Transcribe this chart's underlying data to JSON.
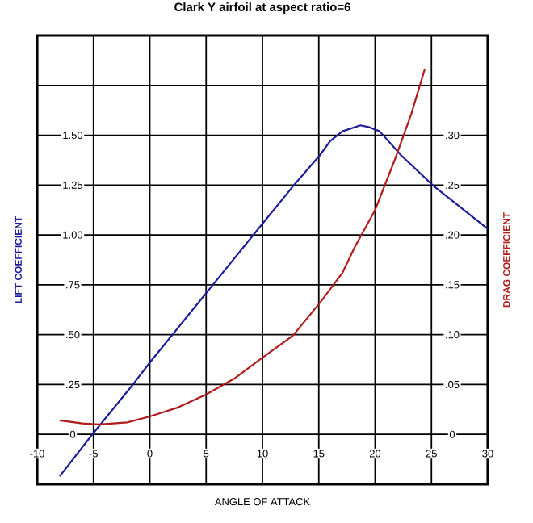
{
  "chart_data": {
    "type": "line",
    "title": "Clark Y airfoil at aspect ratio=6",
    "xlabel": "ANGLE OF ATTACK",
    "ylabel": "LIFT COEFFICIENT",
    "y2label": "DRAG COEFFICIENT",
    "xlim": [
      -10,
      30
    ],
    "xticks": [
      -10,
      -5,
      0,
      5,
      10,
      15,
      20,
      25,
      30
    ],
    "ylim": [
      -0.25,
      2.0
    ],
    "yticks": [
      0,
      {
        "value": 0.25,
        "label": ".25"
      },
      {
        "value": 0.5,
        "label": ".50"
      },
      {
        "value": 0.75,
        "label": ".75"
      },
      {
        "value": 1.0,
        "label": "1.00"
      },
      {
        "value": 1.25,
        "label": "1.25"
      },
      {
        "value": 1.5,
        "label": "1.50"
      },
      {
        "value": 1.75,
        "label": null
      }
    ],
    "y2lim": [
      -0.05,
      0.4
    ],
    "y2ticks": [
      0,
      {
        "value": 0.05,
        "label": ".05"
      },
      {
        "value": 0.1,
        "label": ".10"
      },
      {
        "value": 0.15,
        "label": ".15"
      },
      {
        "value": 0.2,
        "label": ".20"
      },
      {
        "value": 0.25,
        "label": ".25"
      },
      {
        "value": 0.3,
        "label": ".30"
      },
      {
        "value": 0.35,
        "label": null
      }
    ],
    "grid": true,
    "series": [
      {
        "color": "#1c1c9c",
        "x": [
          -8,
          -5.1,
          -1.5,
          0,
          5.6,
          10.2,
          12.8,
          15.1,
          16,
          17.1,
          18.7,
          19.5,
          20.4,
          22.3,
          25.1,
          30
        ],
        "values": [
          -0.21,
          0,
          0.25,
          0.36,
          0.75,
          1.07,
          1.25,
          1.4,
          1.47,
          1.52,
          1.55,
          1.54,
          1.52,
          1.4,
          1.25,
          1.03
        ]
      },
      {
        "color": "#b01c1c",
        "axis": "y2",
        "x": [
          -8,
          -6,
          -4.5,
          -2,
          0,
          2.5,
          5,
          7.5,
          10,
          12.7,
          15.1,
          17.1,
          18.2,
          20,
          21.8,
          23.2,
          24.4
        ],
        "values": [
          0.014,
          0.011,
          0.01,
          0.012,
          0.018,
          0.027,
          0.04,
          0.056,
          0.077,
          0.099,
          0.132,
          0.162,
          0.188,
          0.225,
          0.277,
          0.321,
          0.366
        ]
      }
    ]
  }
}
